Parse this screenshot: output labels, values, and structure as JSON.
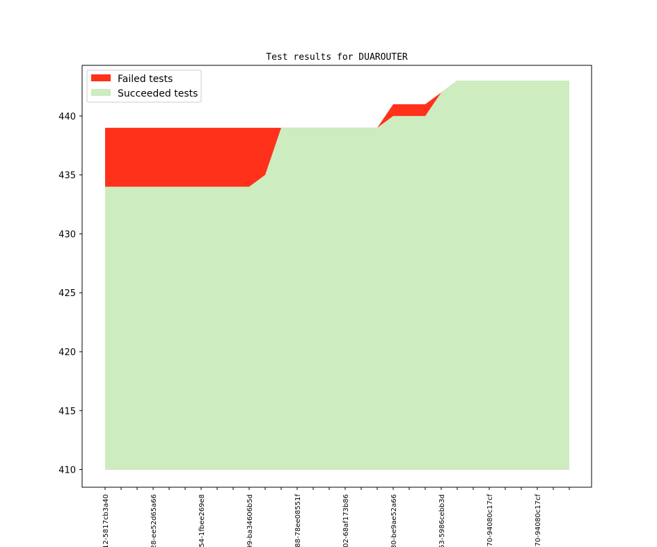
{
  "chart_data": {
    "type": "area",
    "title": "Test results for DUAROUTER",
    "xlabel": "",
    "ylabel": "",
    "ylim": [
      408.5,
      444.3
    ],
    "yticks": [
      410,
      415,
      420,
      425,
      430,
      435,
      440
    ],
    "baseline": 410,
    "n_points": 30,
    "xtick_labels": [
      {
        "index": 0,
        "label": "12-5817cb3a40"
      },
      {
        "index": 3,
        "label": "28-ee52d65a66"
      },
      {
        "index": 6,
        "label": "54-1fbee269e8"
      },
      {
        "index": 9,
        "label": "99-ba34606b5d"
      },
      {
        "index": 12,
        "label": "88-78ee08551f"
      },
      {
        "index": 15,
        "label": "02-68af173b86"
      },
      {
        "index": 18,
        "label": "30-be9ae52a66"
      },
      {
        "index": 21,
        "label": "53-5986cebb3d"
      },
      {
        "index": 24,
        "label": "70-94080c17cf"
      },
      {
        "index": 27,
        "label": "70-94080c17cf"
      }
    ],
    "series": [
      {
        "name": "Succeeded tests",
        "color": "#cdecbf",
        "values": [
          434,
          434,
          434,
          434,
          434,
          434,
          434,
          434,
          434,
          434,
          435,
          439,
          439,
          439,
          439,
          439,
          439,
          439,
          440,
          440,
          440,
          442,
          443,
          443,
          443,
          443,
          443,
          443,
          443,
          443
        ]
      },
      {
        "name": "Failed tests",
        "color": "#ff311a",
        "values": [
          439,
          439,
          439,
          439,
          439,
          439,
          439,
          439,
          439,
          439,
          439,
          439,
          439,
          439,
          439,
          439,
          439,
          439,
          441,
          441,
          441,
          442,
          443,
          443,
          443,
          443,
          443,
          443,
          443,
          443
        ]
      }
    ],
    "legend": {
      "position": "upper-left",
      "entries": [
        {
          "label": "Failed tests",
          "color": "#ff311a"
        },
        {
          "label": "Succeeded tests",
          "color": "#cdecbf"
        }
      ]
    },
    "grid": false
  }
}
